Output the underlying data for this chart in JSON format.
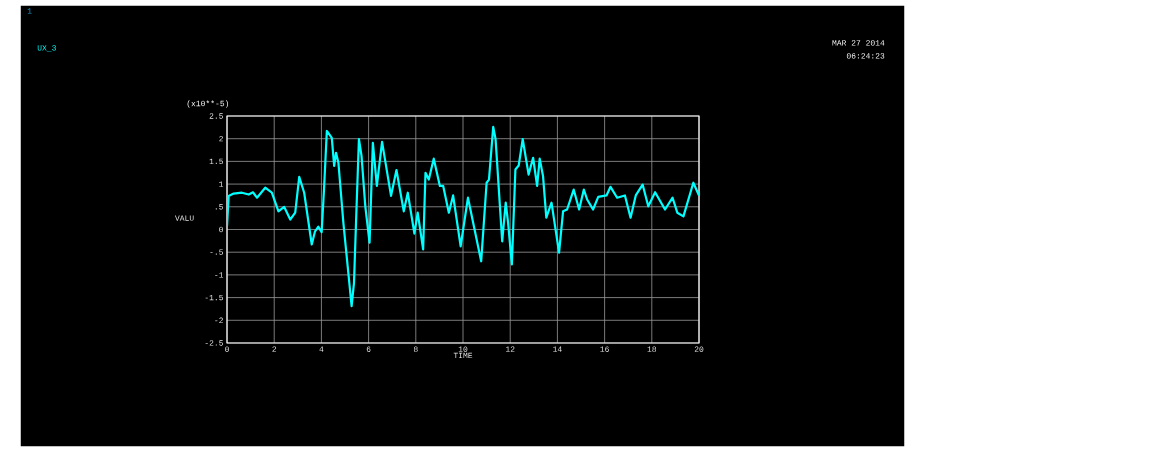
{
  "chart_data": {
    "type": "line",
    "xlabel": "TIME",
    "ylabel": "VALU",
    "annotations": [
      "1",
      "MAR 27 2014",
      "06:24:23",
      "(x10**-5)"
    ],
    "x": [
      0,
      0.07,
      0.28,
      0.63,
      0.92,
      1.1,
      1.27,
      1.62,
      1.9,
      2.18,
      2.42,
      2.68,
      2.89,
      3.06,
      3.27,
      3.59,
      3.73,
      3.87,
      4.01,
      4.11,
      4.23,
      4.44,
      4.54,
      4.62,
      4.72,
      4.93,
      5.28,
      5.38,
      5.49,
      5.59,
      5.7,
      5.86,
      6.04,
      6.18,
      6.35,
      6.57,
      6.95,
      7.18,
      7.49,
      7.66,
      7.94,
      8.08,
      8.31,
      8.41,
      8.55,
      8.76,
      9.02,
      9.16,
      9.4,
      9.58,
      9.9,
      10.21,
      10.77,
      11.0,
      11.1,
      11.28,
      11.38,
      11.66,
      11.81,
      11.91,
      12.07,
      12.22,
      12.36,
      12.53,
      12.78,
      12.97,
      13.14,
      13.25,
      13.39,
      13.53,
      13.75,
      14.07,
      14.24,
      14.41,
      14.69,
      14.92,
      15.12,
      15.26,
      15.51,
      15.73,
      16.08,
      16.25,
      16.53,
      16.86,
      17.1,
      17.32,
      17.61,
      17.85,
      18.14,
      18.56,
      18.88,
      19.08,
      19.34,
      19.76,
      20
    ],
    "series": [
      {
        "name": "UX_3",
        "color": "#00ffff",
        "values": [
          0.07,
          0.74,
          0.79,
          0.81,
          0.77,
          0.82,
          0.7,
          0.92,
          0.81,
          0.4,
          0.5,
          0.22,
          0.37,
          1.16,
          0.81,
          -0.33,
          -0.04,
          0.06,
          -0.06,
          0.88,
          2.17,
          2.02,
          1.4,
          1.69,
          1.47,
          0.15,
          -1.69,
          -1.18,
          0.51,
          1.99,
          1.62,
          0.51,
          -0.29,
          1.91,
          0.96,
          1.93,
          0.74,
          1.31,
          0.4,
          0.81,
          -0.09,
          0.37,
          -0.44,
          1.25,
          1.1,
          1.56,
          0.96,
          0.96,
          0.37,
          0.75,
          -0.37,
          0.7,
          -0.7,
          1.03,
          1.1,
          2.26,
          1.99,
          -0.26,
          0.59,
          0.15,
          -0.77,
          1.32,
          1.41,
          1.99,
          1.21,
          1.58,
          0.96,
          1.56,
          1.18,
          0.26,
          0.59,
          -0.51,
          0.4,
          0.44,
          0.88,
          0.44,
          0.88,
          0.66,
          0.44,
          0.72,
          0.75,
          0.94,
          0.7,
          0.75,
          0.26,
          0.75,
          0.99,
          0.51,
          0.82,
          0.44,
          0.7,
          0.37,
          0.29,
          1.03,
          0.75
        ]
      }
    ],
    "xlim": [
      0,
      20
    ],
    "xticks": [
      0,
      2,
      4,
      6,
      8,
      10,
      12,
      14,
      16,
      18,
      20
    ],
    "ylim": [
      -2.5,
      2.5
    ],
    "yticks": [
      -2.5,
      -2,
      -1.5,
      -1,
      {
        "value": -0.5,
        "label": "-.5"
      },
      0,
      {
        "value": 0.5,
        "label": ".5"
      },
      1,
      1.5,
      2,
      2.5
    ],
    "grid": true,
    "marker": "none",
    "line_style": "solid"
  }
}
